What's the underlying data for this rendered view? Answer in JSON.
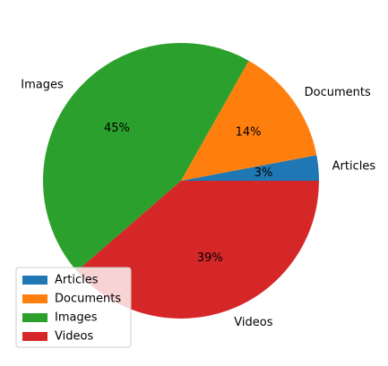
{
  "chart_data": {
    "type": "pie",
    "title": "",
    "categories": [
      "Articles",
      "Documents",
      "Images",
      "Videos"
    ],
    "values": [
      3,
      14,
      45,
      39
    ],
    "value_labels": [
      "3%",
      "14%",
      "45%",
      "39%"
    ],
    "colors": [
      "#1f77b4",
      "#ff7f0e",
      "#2ca02c",
      "#d62728"
    ],
    "start_angle": 0,
    "direction": "counterclockwise",
    "legend": {
      "placement": "lower-left",
      "entries": [
        "Articles",
        "Documents",
        "Images",
        "Videos"
      ]
    }
  }
}
